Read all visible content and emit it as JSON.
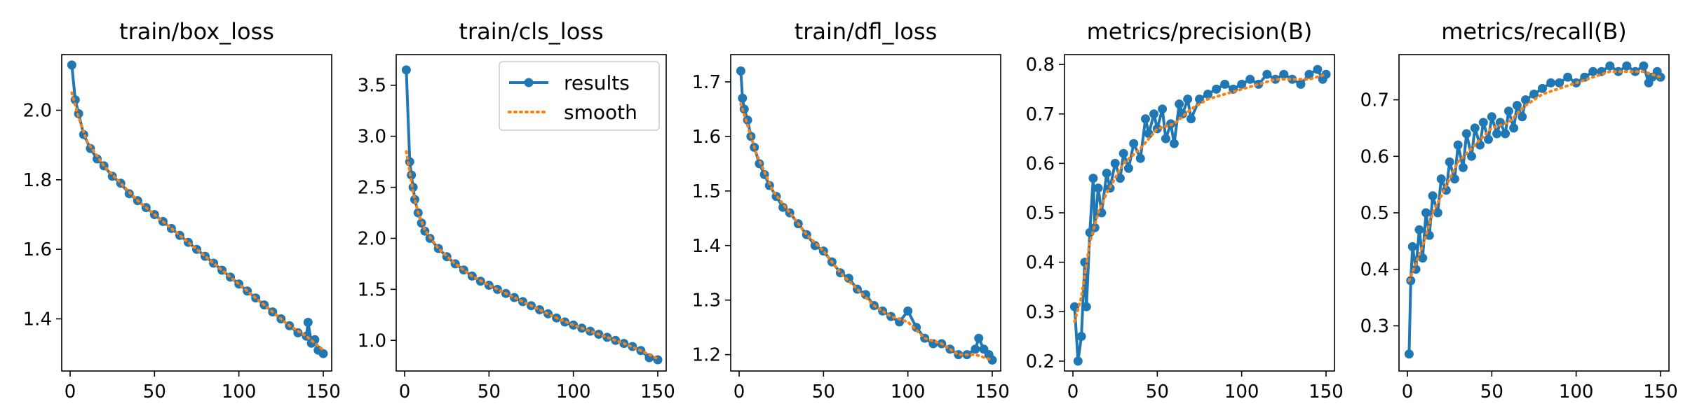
{
  "figure": {
    "colors": {
      "results": "#1f77b4",
      "smooth": "#ff7f0e",
      "axis": "#000000"
    },
    "legend": {
      "panel": 1,
      "placement": "top-right",
      "entries": [
        "results",
        "smooth"
      ]
    }
  },
  "chart_data": [
    {
      "type": "line",
      "title": "train/box_loss",
      "xlim": [
        -5,
        155
      ],
      "ylim": [
        1.25,
        2.16
      ],
      "xticks": [
        0,
        50,
        100,
        150
      ],
      "yticks": [
        1.4,
        1.6,
        1.8,
        2.0
      ],
      "ytick_labels": [
        "1.4",
        "1.6",
        "1.8",
        "2.0"
      ],
      "xtick_labels": [
        "0",
        "50",
        "100",
        "150"
      ],
      "series": [
        {
          "name": "results",
          "x": [
            1,
            3,
            5,
            8,
            12,
            16,
            20,
            25,
            30,
            35,
            40,
            45,
            50,
            55,
            60,
            65,
            70,
            75,
            80,
            85,
            90,
            95,
            100,
            105,
            110,
            115,
            120,
            125,
            130,
            135,
            140,
            141,
            143,
            145,
            147,
            150
          ],
          "y": [
            2.13,
            2.03,
            1.99,
            1.93,
            1.89,
            1.86,
            1.84,
            1.81,
            1.79,
            1.76,
            1.74,
            1.72,
            1.7,
            1.68,
            1.66,
            1.64,
            1.62,
            1.6,
            1.58,
            1.56,
            1.54,
            1.52,
            1.5,
            1.48,
            1.46,
            1.44,
            1.42,
            1.4,
            1.38,
            1.36,
            1.35,
            1.39,
            1.33,
            1.34,
            1.31,
            1.3
          ]
        },
        {
          "name": "smooth",
          "x": [
            1,
            5,
            10,
            20,
            30,
            40,
            50,
            60,
            70,
            80,
            90,
            100,
            110,
            120,
            130,
            140,
            150
          ],
          "y": [
            2.05,
            1.98,
            1.91,
            1.84,
            1.79,
            1.74,
            1.7,
            1.66,
            1.62,
            1.58,
            1.54,
            1.5,
            1.46,
            1.42,
            1.38,
            1.35,
            1.31
          ]
        }
      ]
    },
    {
      "type": "line",
      "title": "train/cls_loss",
      "xlim": [
        -5,
        155
      ],
      "ylim": [
        0.7,
        3.8
      ],
      "xticks": [
        0,
        50,
        100,
        150
      ],
      "yticks": [
        1.0,
        1.5,
        2.0,
        2.5,
        3.0,
        3.5
      ],
      "ytick_labels": [
        "1.0",
        "1.5",
        "2.0",
        "2.5",
        "3.0",
        "3.5"
      ],
      "xtick_labels": [
        "0",
        "50",
        "100",
        "150"
      ],
      "series": [
        {
          "name": "results",
          "x": [
            1,
            3,
            4,
            5,
            6,
            8,
            10,
            12,
            15,
            20,
            25,
            30,
            35,
            40,
            45,
            50,
            55,
            60,
            65,
            70,
            75,
            80,
            85,
            90,
            95,
            100,
            105,
            110,
            115,
            120,
            125,
            130,
            135,
            140,
            145,
            150
          ],
          "y": [
            3.65,
            2.75,
            2.62,
            2.5,
            2.38,
            2.25,
            2.15,
            2.07,
            2.0,
            1.9,
            1.82,
            1.75,
            1.69,
            1.63,
            1.58,
            1.54,
            1.5,
            1.46,
            1.42,
            1.38,
            1.34,
            1.3,
            1.26,
            1.22,
            1.18,
            1.15,
            1.12,
            1.09,
            1.06,
            1.03,
            1.0,
            0.97,
            0.94,
            0.9,
            0.83,
            0.81
          ]
        },
        {
          "name": "smooth",
          "x": [
            1,
            3,
            5,
            8,
            12,
            20,
            30,
            40,
            50,
            60,
            70,
            80,
            90,
            100,
            110,
            120,
            130,
            140,
            150
          ],
          "y": [
            2.85,
            2.65,
            2.45,
            2.25,
            2.08,
            1.9,
            1.75,
            1.63,
            1.54,
            1.46,
            1.38,
            1.3,
            1.22,
            1.15,
            1.09,
            1.03,
            0.97,
            0.9,
            0.82
          ]
        }
      ]
    },
    {
      "type": "line",
      "title": "train/dfl_loss",
      "xlim": [
        -5,
        155
      ],
      "ylim": [
        1.17,
        1.75
      ],
      "xticks": [
        0,
        50,
        100,
        150
      ],
      "yticks": [
        1.2,
        1.3,
        1.4,
        1.5,
        1.6,
        1.7
      ],
      "ytick_labels": [
        "1.2",
        "1.3",
        "1.4",
        "1.5",
        "1.6",
        "1.7"
      ],
      "xtick_labels": [
        "0",
        "50",
        "100",
        "150"
      ],
      "series": [
        {
          "name": "results",
          "x": [
            1,
            2,
            3,
            5,
            7,
            9,
            12,
            15,
            18,
            22,
            26,
            30,
            35,
            40,
            45,
            50,
            55,
            60,
            65,
            70,
            75,
            80,
            85,
            90,
            95,
            100,
            105,
            110,
            115,
            120,
            125,
            130,
            135,
            140,
            142,
            145,
            148,
            150
          ],
          "y": [
            1.72,
            1.67,
            1.65,
            1.63,
            1.6,
            1.58,
            1.55,
            1.53,
            1.51,
            1.49,
            1.47,
            1.46,
            1.44,
            1.42,
            1.4,
            1.39,
            1.37,
            1.35,
            1.34,
            1.32,
            1.31,
            1.29,
            1.28,
            1.27,
            1.26,
            1.28,
            1.25,
            1.23,
            1.22,
            1.22,
            1.21,
            1.2,
            1.2,
            1.21,
            1.23,
            1.21,
            1.2,
            1.19
          ]
        },
        {
          "name": "smooth",
          "x": [
            1,
            5,
            10,
            20,
            30,
            40,
            50,
            60,
            70,
            80,
            90,
            100,
            110,
            120,
            130,
            140,
            150
          ],
          "y": [
            1.66,
            1.62,
            1.57,
            1.5,
            1.46,
            1.42,
            1.39,
            1.35,
            1.32,
            1.29,
            1.27,
            1.26,
            1.23,
            1.22,
            1.2,
            1.2,
            1.19
          ]
        }
      ]
    },
    {
      "type": "line",
      "title": "metrics/precision(B)",
      "xlim": [
        -5,
        155
      ],
      "ylim": [
        0.18,
        0.82
      ],
      "xticks": [
        0,
        50,
        100,
        150
      ],
      "yticks": [
        0.2,
        0.3,
        0.4,
        0.5,
        0.6,
        0.7,
        0.8
      ],
      "ytick_labels": [
        "0.2",
        "0.3",
        "0.4",
        "0.5",
        "0.6",
        "0.7",
        "0.8"
      ],
      "xtick_labels": [
        "0",
        "50",
        "100",
        "150"
      ],
      "series": [
        {
          "name": "results",
          "x": [
            1,
            3,
            5,
            7,
            8,
            10,
            12,
            13,
            15,
            17,
            20,
            22,
            25,
            28,
            30,
            33,
            36,
            40,
            43,
            45,
            48,
            50,
            53,
            55,
            58,
            60,
            63,
            65,
            68,
            70,
            75,
            80,
            85,
            90,
            95,
            100,
            105,
            110,
            115,
            120,
            125,
            130,
            135,
            140,
            145,
            148,
            150
          ],
          "y": [
            0.31,
            0.2,
            0.25,
            0.4,
            0.31,
            0.46,
            0.57,
            0.47,
            0.55,
            0.5,
            0.58,
            0.55,
            0.6,
            0.57,
            0.62,
            0.59,
            0.64,
            0.61,
            0.69,
            0.66,
            0.7,
            0.67,
            0.71,
            0.65,
            0.68,
            0.64,
            0.72,
            0.7,
            0.73,
            0.69,
            0.73,
            0.74,
            0.75,
            0.76,
            0.75,
            0.76,
            0.77,
            0.76,
            0.78,
            0.77,
            0.78,
            0.77,
            0.76,
            0.78,
            0.79,
            0.77,
            0.78
          ]
        },
        {
          "name": "smooth",
          "x": [
            1,
            5,
            10,
            15,
            20,
            25,
            30,
            40,
            50,
            60,
            70,
            80,
            90,
            100,
            110,
            120,
            130,
            140,
            150
          ],
          "y": [
            0.28,
            0.33,
            0.44,
            0.5,
            0.54,
            0.57,
            0.6,
            0.63,
            0.67,
            0.68,
            0.71,
            0.73,
            0.74,
            0.75,
            0.76,
            0.77,
            0.77,
            0.77,
            0.78
          ]
        }
      ]
    },
    {
      "type": "line",
      "title": "metrics/recall(B)",
      "xlim": [
        -5,
        155
      ],
      "ylim": [
        0.22,
        0.78
      ],
      "xticks": [
        0,
        50,
        100,
        150
      ],
      "yticks": [
        0.3,
        0.4,
        0.5,
        0.6,
        0.7
      ],
      "ytick_labels": [
        "0.3",
        "0.4",
        "0.5",
        "0.6",
        "0.7"
      ],
      "xtick_labels": [
        "0",
        "50",
        "100",
        "150"
      ],
      "series": [
        {
          "name": "results",
          "x": [
            1,
            2,
            3,
            5,
            7,
            9,
            11,
            13,
            15,
            18,
            20,
            23,
            25,
            28,
            30,
            33,
            35,
            38,
            40,
            43,
            45,
            48,
            50,
            53,
            55,
            58,
            60,
            63,
            65,
            68,
            70,
            75,
            80,
            85,
            90,
            95,
            100,
            105,
            110,
            115,
            120,
            125,
            130,
            135,
            140,
            143,
            145,
            148,
            150
          ],
          "y": [
            0.25,
            0.38,
            0.44,
            0.4,
            0.47,
            0.42,
            0.5,
            0.46,
            0.53,
            0.5,
            0.56,
            0.54,
            0.59,
            0.56,
            0.62,
            0.58,
            0.64,
            0.6,
            0.65,
            0.62,
            0.66,
            0.63,
            0.67,
            0.64,
            0.66,
            0.64,
            0.68,
            0.65,
            0.69,
            0.67,
            0.7,
            0.71,
            0.72,
            0.73,
            0.73,
            0.74,
            0.73,
            0.74,
            0.75,
            0.75,
            0.76,
            0.75,
            0.76,
            0.75,
            0.76,
            0.73,
            0.74,
            0.75,
            0.74
          ]
        },
        {
          "name": "smooth",
          "x": [
            1,
            5,
            10,
            15,
            20,
            25,
            30,
            40,
            50,
            60,
            70,
            80,
            90,
            100,
            110,
            120,
            130,
            140,
            150
          ],
          "y": [
            0.38,
            0.41,
            0.45,
            0.5,
            0.53,
            0.56,
            0.59,
            0.62,
            0.65,
            0.66,
            0.69,
            0.71,
            0.72,
            0.73,
            0.74,
            0.75,
            0.75,
            0.75,
            0.74
          ]
        }
      ]
    }
  ]
}
